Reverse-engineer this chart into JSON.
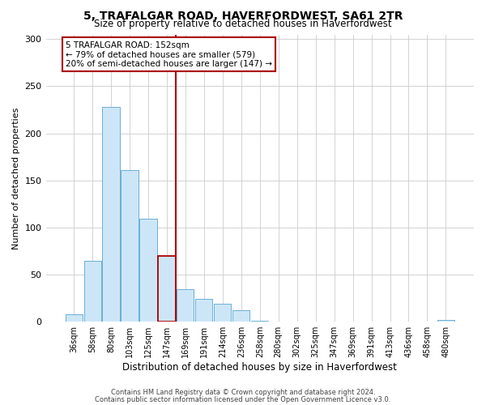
{
  "title": "5, TRAFALGAR ROAD, HAVERFORDWEST, SA61 2TR",
  "subtitle": "Size of property relative to detached houses in Haverfordwest",
  "xlabel": "Distribution of detached houses by size in Haverfordwest",
  "ylabel": "Number of detached properties",
  "bar_labels": [
    "36sqm",
    "58sqm",
    "80sqm",
    "103sqm",
    "125sqm",
    "147sqm",
    "169sqm",
    "191sqm",
    "214sqm",
    "236sqm",
    "258sqm",
    "280sqm",
    "302sqm",
    "325sqm",
    "347sqm",
    "369sqm",
    "391sqm",
    "413sqm",
    "436sqm",
    "458sqm",
    "480sqm"
  ],
  "bar_values": [
    8,
    65,
    228,
    161,
    109,
    70,
    35,
    24,
    19,
    12,
    1,
    0,
    0,
    0,
    0,
    0,
    0,
    0,
    0,
    0,
    2
  ],
  "bar_color": "#cde6f7",
  "bar_edge_color": "#6baed6",
  "highlight_bar_index": 5,
  "vline_color": "#aa0000",
  "annotation_box_edge": "#aa0000",
  "ylim": [
    0,
    305
  ],
  "yticks": [
    0,
    50,
    100,
    150,
    200,
    250,
    300
  ],
  "annotation_title": "5 TRAFALGAR ROAD: 152sqm",
  "annotation_line1": "← 79% of detached houses are smaller (579)",
  "annotation_line2": "20% of semi-detached houses are larger (147) →",
  "footer_line1": "Contains HM Land Registry data © Crown copyright and database right 2024.",
  "footer_line2": "Contains public sector information licensed under the Open Government Licence v3.0.",
  "bg_color": "#ffffff",
  "grid_color": "#cccccc"
}
